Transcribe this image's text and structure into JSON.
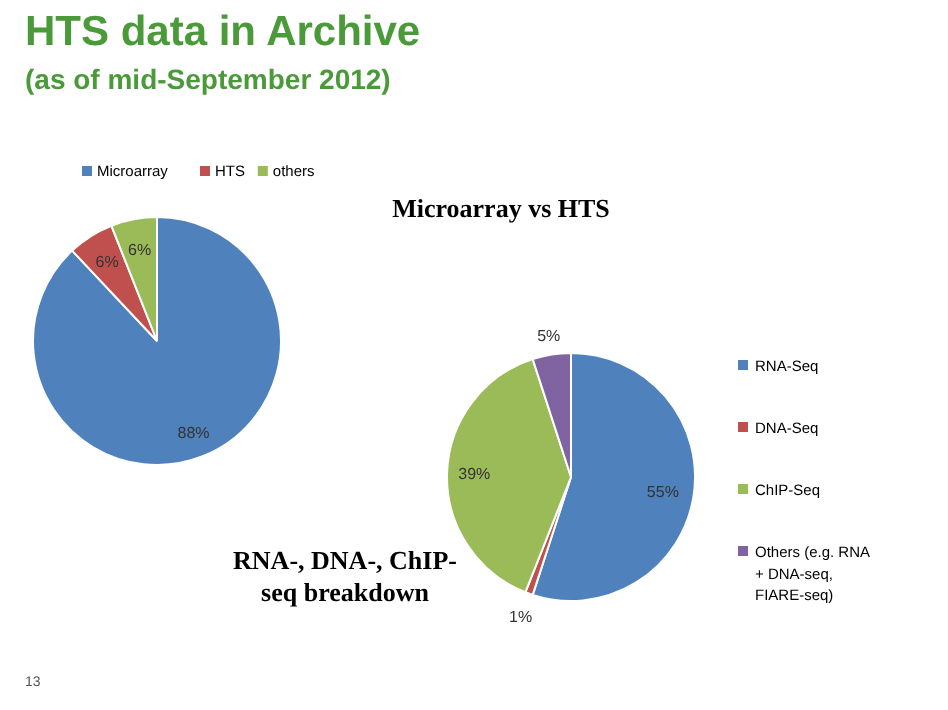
{
  "chart_data": [
    {
      "type": "pie",
      "title": "Microarray vs HTS",
      "annotations": [
        "HTS data in Archive",
        "(as of mid-September 2012)",
        "13"
      ],
      "categories": [
        "Microarray",
        "HTS",
        "others"
      ],
      "values": [
        88,
        6,
        6
      ],
      "colors": [
        "#4f81bd",
        "#c0504d",
        "#9bbb59"
      ],
      "value_labels": [
        "88%",
        "6%",
        "6%"
      ],
      "legend": "top"
    },
    {
      "type": "pie",
      "title": "RNA-, DNA-, ChIP-seq breakdown",
      "categories": [
        "RNA-Seq",
        "DNA-Seq",
        "ChIP-Seq",
        "Others (e.g. RNA + DNA-seq, FIARE-seq)"
      ],
      "values": [
        55,
        1,
        39,
        5
      ],
      "colors": [
        "#4f81bd",
        "#c0504d",
        "#9bbb59",
        "#8064a2"
      ],
      "value_labels": [
        "55%",
        "1%",
        "39%",
        "5%"
      ],
      "legend": "right"
    }
  ]
}
